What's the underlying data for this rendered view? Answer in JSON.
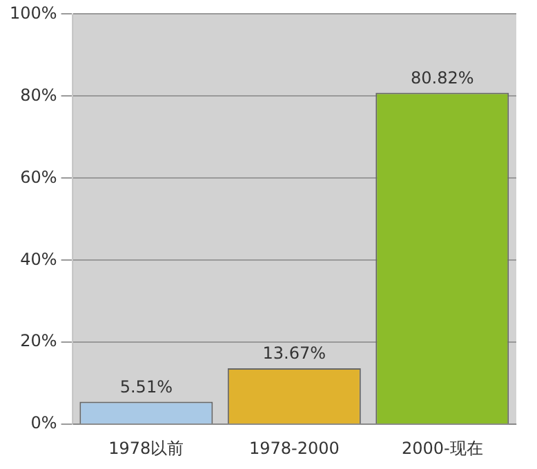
{
  "chart_data": {
    "type": "bar",
    "categories": [
      "1978以前",
      "1978-2000",
      "2000-现在"
    ],
    "values": [
      5.51,
      13.67,
      80.82
    ],
    "colors": [
      "#a9c9e6",
      "#e0b22e",
      "#8cbc2a"
    ],
    "value_labels": [
      "5.51%",
      "13.67%",
      "80.82%"
    ],
    "ylim": [
      0,
      100
    ],
    "yticks": [
      {
        "value": 0,
        "label": "0%"
      },
      {
        "value": 20,
        "label": "20%"
      },
      {
        "value": 40,
        "label": "40%"
      },
      {
        "value": 60,
        "label": "60%"
      },
      {
        "value": 80,
        "label": "80%"
      },
      {
        "value": 100,
        "label": "100%"
      }
    ],
    "grid": "y",
    "legend": false
  }
}
